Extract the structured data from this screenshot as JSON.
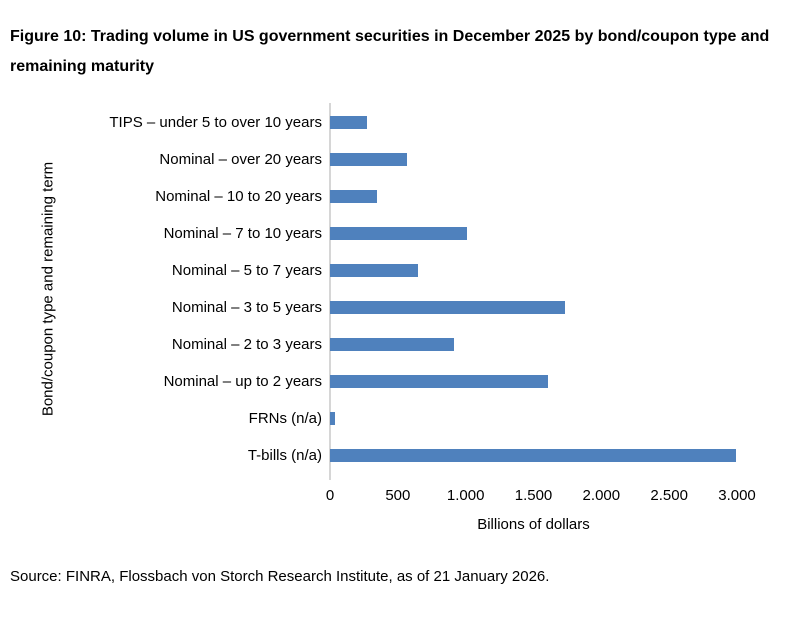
{
  "title": "Figure 10: Trading volume in US government securities in December 2025 by bond/coupon type and remaining maturity",
  "source": "Source: FINRA, Flossbach von Storch Research Institute, as of 21 January 2026.",
  "colors": {
    "bar": "#4F81BD",
    "axis_line": "#D6D6D6",
    "text": "#000000",
    "background": "#FFFFFF"
  },
  "chart_data": {
    "type": "bar",
    "orientation": "horizontal",
    "title": "Figure 10: Trading volume in US government securities in December 2025 by bond/coupon type and remaining maturity",
    "categories": [
      "TIPS – under 5 to over 10 years",
      "Nominal – over 20 years",
      "Nominal – 10 to 20 years",
      "Nominal – 7 to 10 years",
      "Nominal – 5 to 7 years",
      "Nominal – 3 to 5 years",
      "Nominal – 2 to 3 years",
      "Nominal – up to 2 years",
      "FRNs (n/a)",
      "T-bills (n/a)"
    ],
    "values": [
      270,
      570,
      345,
      1010,
      650,
      1730,
      915,
      1610,
      40,
      2990
    ],
    "xlabel": "Billions of dollars",
    "ylabel": "Bond/coupon type and remaining term",
    "xlim": [
      0,
      3000
    ],
    "xticks": [
      0,
      500,
      1000,
      1500,
      2000,
      2500,
      3000
    ],
    "xtick_labels": [
      "0",
      "500",
      "1.000",
      "1.500",
      "2.000",
      "2.500",
      "3.000"
    ],
    "grid": false,
    "legend": false
  }
}
